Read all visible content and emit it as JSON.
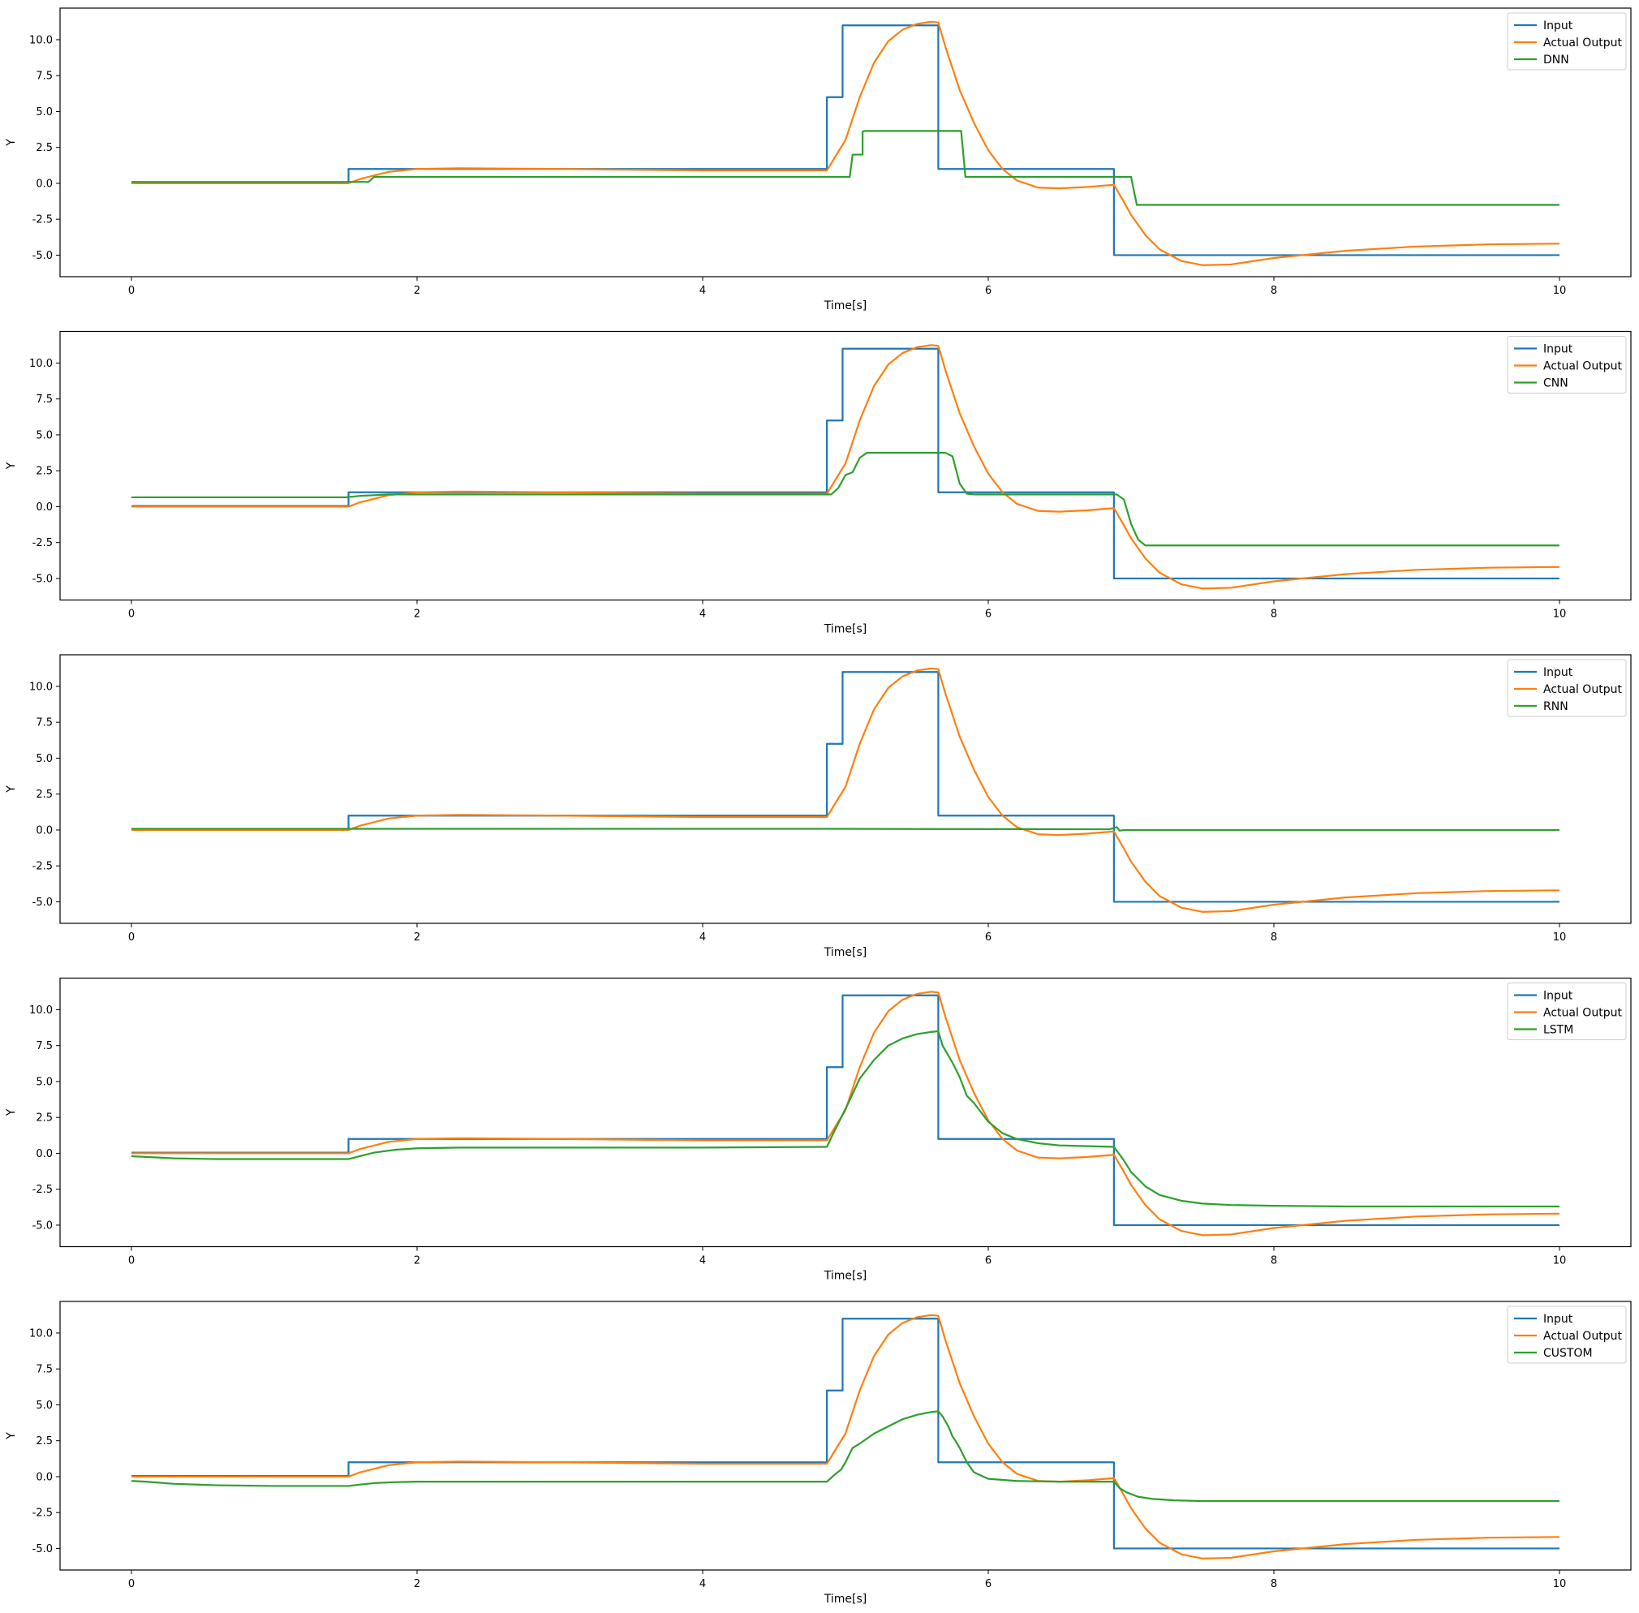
{
  "chart_data": [
    {
      "type": "line",
      "xlabel": "Time[s]",
      "ylabel": "Y",
      "xlim": [
        -0.5,
        10.5
      ],
      "ylim": [
        -6.5,
        12.2
      ],
      "xticks": [
        0,
        2,
        4,
        6,
        8,
        10
      ],
      "yticks": [
        -5.0,
        -2.5,
        0.0,
        2.5,
        5.0,
        7.5,
        10.0
      ],
      "grid": false,
      "legend_position": "top-right",
      "series": [
        {
          "name": "Input",
          "color": "#1f77b4",
          "x": [
            0,
            1.52,
            1.52,
            4.87,
            4.87,
            4.98,
            4.98,
            5.65,
            5.65,
            6.88,
            6.88,
            10
          ],
          "y": [
            0.05,
            0.05,
            1.0,
            1.0,
            6.0,
            6.0,
            11.0,
            11.0,
            1.0,
            1.0,
            -5.0,
            -5.0
          ]
        },
        {
          "name": "Actual Output",
          "color": "#ff7f0e",
          "x": [
            0,
            1.52,
            1.6,
            1.8,
            2.0,
            2.3,
            3.0,
            4.0,
            4.87,
            4.95,
            5.0,
            5.1,
            5.2,
            5.3,
            5.4,
            5.5,
            5.6,
            5.65,
            5.7,
            5.8,
            5.9,
            6.0,
            6.1,
            6.2,
            6.35,
            6.5,
            6.7,
            6.88,
            6.95,
            7.0,
            7.1,
            7.2,
            7.35,
            7.5,
            7.7,
            8.0,
            8.5,
            9.0,
            9.5,
            10.0
          ],
          "y": [
            0.0,
            0.0,
            0.3,
            0.8,
            1.0,
            1.05,
            1.0,
            0.9,
            0.9,
            2.2,
            3.0,
            6.0,
            8.4,
            9.9,
            10.7,
            11.1,
            11.25,
            11.2,
            9.5,
            6.5,
            4.2,
            2.3,
            1.0,
            0.2,
            -0.3,
            -0.35,
            -0.25,
            -0.1,
            -1.3,
            -2.2,
            -3.6,
            -4.6,
            -5.4,
            -5.7,
            -5.65,
            -5.2,
            -4.7,
            -4.4,
            -4.25,
            -4.2
          ]
        },
        {
          "name": "DNN",
          "color": "#2ca02c",
          "x": [
            0,
            1.66,
            1.7,
            5.03,
            5.05,
            5.12,
            5.12,
            5.14,
            5.15,
            5.81,
            5.84,
            7.0,
            7.04,
            10.0
          ],
          "y": [
            0.1,
            0.1,
            0.45,
            0.45,
            2.0,
            2.0,
            3.6,
            3.65,
            3.65,
            3.65,
            0.45,
            0.45,
            -1.5,
            -1.5
          ]
        }
      ]
    },
    {
      "type": "line",
      "xlabel": "Time[s]",
      "ylabel": "Y",
      "xlim": [
        -0.5,
        10.5
      ],
      "ylim": [
        -6.5,
        12.2
      ],
      "xticks": [
        0,
        2,
        4,
        6,
        8,
        10
      ],
      "yticks": [
        -5.0,
        -2.5,
        0.0,
        2.5,
        5.0,
        7.5,
        10.0
      ],
      "grid": false,
      "legend_position": "top-right",
      "series": [
        {
          "name": "Input",
          "color": "#1f77b4",
          "x": [
            0,
            1.52,
            1.52,
            4.87,
            4.87,
            4.98,
            4.98,
            5.65,
            5.65,
            6.88,
            6.88,
            10
          ],
          "y": [
            0.05,
            0.05,
            1.0,
            1.0,
            6.0,
            6.0,
            11.0,
            11.0,
            1.0,
            1.0,
            -5.0,
            -5.0
          ]
        },
        {
          "name": "Actual Output",
          "color": "#ff7f0e",
          "x": [
            0,
            1.52,
            1.6,
            1.8,
            2.0,
            2.3,
            3.0,
            4.0,
            4.87,
            4.95,
            5.0,
            5.1,
            5.2,
            5.3,
            5.4,
            5.5,
            5.6,
            5.65,
            5.7,
            5.8,
            5.9,
            6.0,
            6.1,
            6.2,
            6.35,
            6.5,
            6.7,
            6.88,
            6.95,
            7.0,
            7.1,
            7.2,
            7.35,
            7.5,
            7.7,
            8.0,
            8.5,
            9.0,
            9.5,
            10.0
          ],
          "y": [
            0.0,
            0.0,
            0.3,
            0.8,
            1.0,
            1.05,
            1.0,
            0.9,
            0.9,
            2.2,
            3.0,
            6.0,
            8.4,
            9.9,
            10.7,
            11.1,
            11.25,
            11.2,
            9.5,
            6.5,
            4.2,
            2.3,
            1.0,
            0.2,
            -0.3,
            -0.35,
            -0.25,
            -0.1,
            -1.3,
            -2.2,
            -3.6,
            -4.6,
            -5.4,
            -5.7,
            -5.65,
            -5.2,
            -4.7,
            -4.4,
            -4.25,
            -4.2
          ]
        },
        {
          "name": "CNN",
          "color": "#2ca02c",
          "x": [
            0,
            1.5,
            1.6,
            1.8,
            2.0,
            4.9,
            4.95,
            5.0,
            5.05,
            5.1,
            5.15,
            5.2,
            5.7,
            5.75,
            5.8,
            5.85,
            5.9,
            6.9,
            6.95,
            7.0,
            7.05,
            7.1,
            10.0
          ],
          "y": [
            0.65,
            0.65,
            0.75,
            0.85,
            0.85,
            0.85,
            1.3,
            2.2,
            2.4,
            3.4,
            3.75,
            3.75,
            3.75,
            3.5,
            1.6,
            0.9,
            0.85,
            0.85,
            0.5,
            -1.2,
            -2.3,
            -2.7,
            -2.7
          ]
        }
      ]
    },
    {
      "type": "line",
      "xlabel": "Time[s]",
      "ylabel": "Y",
      "xlim": [
        -0.5,
        10.5
      ],
      "ylim": [
        -6.5,
        12.2
      ],
      "xticks": [
        0,
        2,
        4,
        6,
        8,
        10
      ],
      "yticks": [
        -5.0,
        -2.5,
        0.0,
        2.5,
        5.0,
        7.5,
        10.0
      ],
      "grid": false,
      "legend_position": "top-right",
      "series": [
        {
          "name": "Input",
          "color": "#1f77b4",
          "x": [
            0,
            1.52,
            1.52,
            4.87,
            4.87,
            4.98,
            4.98,
            5.65,
            5.65,
            6.88,
            6.88,
            10
          ],
          "y": [
            0.05,
            0.05,
            1.0,
            1.0,
            6.0,
            6.0,
            11.0,
            11.0,
            1.0,
            1.0,
            -5.0,
            -5.0
          ]
        },
        {
          "name": "Actual Output",
          "color": "#ff7f0e",
          "x": [
            0,
            1.52,
            1.6,
            1.8,
            2.0,
            2.3,
            3.0,
            4.0,
            4.87,
            4.95,
            5.0,
            5.1,
            5.2,
            5.3,
            5.4,
            5.5,
            5.6,
            5.65,
            5.7,
            5.8,
            5.9,
            6.0,
            6.1,
            6.2,
            6.35,
            6.5,
            6.7,
            6.88,
            6.95,
            7.0,
            7.1,
            7.2,
            7.35,
            7.5,
            7.7,
            8.0,
            8.5,
            9.0,
            9.5,
            10.0
          ],
          "y": [
            0.0,
            0.0,
            0.3,
            0.8,
            1.0,
            1.05,
            1.0,
            0.9,
            0.9,
            2.2,
            3.0,
            6.0,
            8.4,
            9.9,
            10.7,
            11.1,
            11.25,
            11.2,
            9.5,
            6.5,
            4.2,
            2.3,
            1.0,
            0.2,
            -0.3,
            -0.35,
            -0.25,
            -0.1,
            -1.3,
            -2.2,
            -3.6,
            -4.6,
            -5.4,
            -5.7,
            -5.65,
            -5.2,
            -4.7,
            -4.4,
            -4.25,
            -4.2
          ]
        },
        {
          "name": "RNN",
          "color": "#2ca02c",
          "x": [
            0,
            4.9,
            6.85,
            6.9,
            6.92,
            6.95,
            10.0
          ],
          "y": [
            0.08,
            0.08,
            0.05,
            0.2,
            -0.05,
            0.0,
            0.0
          ]
        }
      ]
    },
    {
      "type": "line",
      "xlabel": "Time[s]",
      "ylabel": "Y",
      "xlim": [
        -0.5,
        10.5
      ],
      "ylim": [
        -6.5,
        12.2
      ],
      "xticks": [
        0,
        2,
        4,
        6,
        8,
        10
      ],
      "yticks": [
        -5.0,
        -2.5,
        0.0,
        2.5,
        5.0,
        7.5,
        10.0
      ],
      "grid": false,
      "legend_position": "top-right",
      "series": [
        {
          "name": "Input",
          "color": "#1f77b4",
          "x": [
            0,
            1.52,
            1.52,
            4.87,
            4.87,
            4.98,
            4.98,
            5.65,
            5.65,
            6.88,
            6.88,
            10
          ],
          "y": [
            0.05,
            0.05,
            1.0,
            1.0,
            6.0,
            6.0,
            11.0,
            11.0,
            1.0,
            1.0,
            -5.0,
            -5.0
          ]
        },
        {
          "name": "Actual Output",
          "color": "#ff7f0e",
          "x": [
            0,
            1.52,
            1.6,
            1.8,
            2.0,
            2.3,
            3.0,
            4.0,
            4.87,
            4.95,
            5.0,
            5.1,
            5.2,
            5.3,
            5.4,
            5.5,
            5.6,
            5.65,
            5.7,
            5.8,
            5.9,
            6.0,
            6.1,
            6.2,
            6.35,
            6.5,
            6.7,
            6.88,
            6.95,
            7.0,
            7.1,
            7.2,
            7.35,
            7.5,
            7.7,
            8.0,
            8.5,
            9.0,
            9.5,
            10.0
          ],
          "y": [
            0.0,
            0.0,
            0.3,
            0.8,
            1.0,
            1.05,
            1.0,
            0.9,
            0.9,
            2.2,
            3.0,
            6.0,
            8.4,
            9.9,
            10.7,
            11.1,
            11.25,
            11.2,
            9.5,
            6.5,
            4.2,
            2.3,
            1.0,
            0.2,
            -0.3,
            -0.35,
            -0.25,
            -0.1,
            -1.3,
            -2.2,
            -3.6,
            -4.6,
            -5.4,
            -5.7,
            -5.65,
            -5.2,
            -4.7,
            -4.4,
            -4.25,
            -4.2
          ]
        },
        {
          "name": "LSTM",
          "color": "#2ca02c",
          "x": [
            0,
            0.1,
            0.3,
            0.6,
            1.0,
            1.52,
            1.6,
            1.7,
            1.85,
            2.0,
            2.3,
            3.0,
            4.0,
            4.87,
            4.92,
            4.97,
            5.02,
            5.1,
            5.2,
            5.3,
            5.4,
            5.5,
            5.6,
            5.65,
            5.68,
            5.75,
            5.8,
            5.85,
            5.9,
            6.0,
            6.1,
            6.2,
            6.35,
            6.5,
            6.7,
            6.88,
            6.95,
            7.0,
            7.1,
            7.2,
            7.35,
            7.5,
            7.7,
            8.0,
            8.5,
            9.0,
            10.0
          ],
          "y": [
            -0.2,
            -0.25,
            -0.35,
            -0.4,
            -0.4,
            -0.4,
            -0.2,
            0.05,
            0.25,
            0.35,
            0.4,
            0.4,
            0.4,
            0.45,
            1.5,
            2.5,
            3.5,
            5.2,
            6.5,
            7.5,
            8.0,
            8.3,
            8.45,
            8.5,
            7.5,
            6.3,
            5.3,
            4.0,
            3.5,
            2.2,
            1.4,
            1.0,
            0.7,
            0.55,
            0.5,
            0.45,
            -0.5,
            -1.3,
            -2.3,
            -2.9,
            -3.3,
            -3.5,
            -3.6,
            -3.65,
            -3.7,
            -3.7,
            -3.7
          ]
        }
      ]
    },
    {
      "type": "line",
      "xlabel": "Time[s]",
      "ylabel": "Y",
      "xlim": [
        -0.5,
        10.5
      ],
      "ylim": [
        -6.5,
        12.2
      ],
      "xticks": [
        0,
        2,
        4,
        6,
        8,
        10
      ],
      "yticks": [
        -5.0,
        -2.5,
        0.0,
        2.5,
        5.0,
        7.5,
        10.0
      ],
      "grid": false,
      "legend_position": "top-right",
      "series": [
        {
          "name": "Input",
          "color": "#1f77b4",
          "x": [
            0,
            1.52,
            1.52,
            4.87,
            4.87,
            4.98,
            4.98,
            5.65,
            5.65,
            6.88,
            6.88,
            10
          ],
          "y": [
            0.05,
            0.05,
            1.0,
            1.0,
            6.0,
            6.0,
            11.0,
            11.0,
            1.0,
            1.0,
            -5.0,
            -5.0
          ]
        },
        {
          "name": "Actual Output",
          "color": "#ff7f0e",
          "x": [
            0,
            1.52,
            1.6,
            1.8,
            2.0,
            2.3,
            3.0,
            4.0,
            4.87,
            4.95,
            5.0,
            5.1,
            5.2,
            5.3,
            5.4,
            5.5,
            5.6,
            5.65,
            5.7,
            5.8,
            5.9,
            6.0,
            6.1,
            6.2,
            6.35,
            6.5,
            6.7,
            6.88,
            6.95,
            7.0,
            7.1,
            7.2,
            7.35,
            7.5,
            7.7,
            8.0,
            8.5,
            9.0,
            9.5,
            10.0
          ],
          "y": [
            0.0,
            0.0,
            0.3,
            0.8,
            1.0,
            1.05,
            1.0,
            0.9,
            0.9,
            2.2,
            3.0,
            6.0,
            8.4,
            9.9,
            10.7,
            11.1,
            11.25,
            11.2,
            9.5,
            6.5,
            4.2,
            2.3,
            1.0,
            0.2,
            -0.3,
            -0.35,
            -0.25,
            -0.1,
            -1.3,
            -2.2,
            -3.6,
            -4.6,
            -5.4,
            -5.7,
            -5.65,
            -5.2,
            -4.7,
            -4.4,
            -4.25,
            -4.2
          ]
        },
        {
          "name": "CUSTOM",
          "color": "#2ca02c",
          "x": [
            0,
            0.1,
            0.3,
            0.6,
            1.0,
            1.52,
            1.6,
            1.7,
            1.85,
            2.0,
            3.0,
            4.0,
            4.87,
            4.92,
            4.97,
            5.0,
            5.05,
            5.1,
            5.2,
            5.3,
            5.4,
            5.5,
            5.6,
            5.65,
            5.68,
            5.72,
            5.75,
            5.77,
            5.8,
            5.85,
            5.9,
            6.0,
            6.2,
            6.5,
            6.88,
            6.92,
            6.97,
            7.05,
            7.15,
            7.3,
            7.5,
            8.0,
            9.0,
            10.0
          ],
          "y": [
            -0.3,
            -0.35,
            -0.5,
            -0.6,
            -0.65,
            -0.65,
            -0.55,
            -0.45,
            -0.38,
            -0.35,
            -0.35,
            -0.35,
            -0.35,
            0.1,
            0.5,
            1.0,
            2.0,
            2.3,
            3.0,
            3.5,
            4.0,
            4.3,
            4.5,
            4.55,
            4.2,
            3.5,
            2.8,
            2.5,
            2.0,
            1.0,
            0.3,
            -0.15,
            -0.3,
            -0.35,
            -0.35,
            -0.8,
            -1.1,
            -1.4,
            -1.55,
            -1.65,
            -1.7,
            -1.7,
            -1.7,
            -1.7
          ]
        }
      ]
    }
  ]
}
